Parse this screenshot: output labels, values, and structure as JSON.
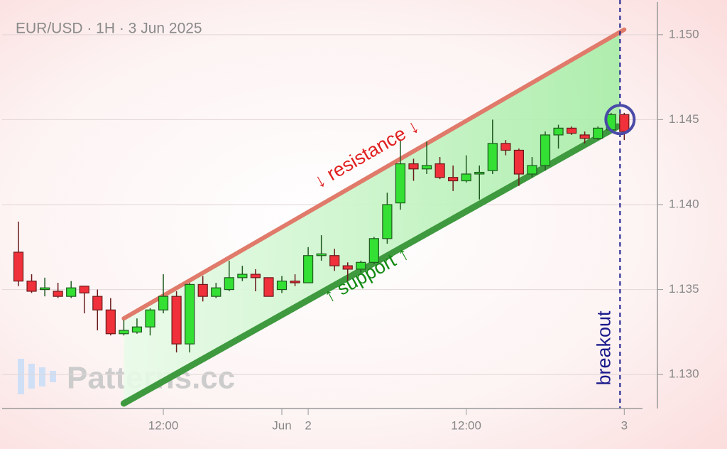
{
  "chart_data": {
    "type": "candlestick",
    "title": "EUR/USD · 1H · 3 Jun 2025",
    "watermark": "Patterns.cc",
    "categories": [
      null,
      null,
      null,
      null,
      null,
      null,
      null,
      null,
      null,
      null,
      null,
      "12:00",
      null,
      null,
      null,
      null,
      null,
      null,
      null,
      null,
      "Jun",
      null,
      "2",
      null,
      null,
      null,
      null,
      null,
      null,
      null,
      null,
      null,
      null,
      null,
      "12:00",
      null,
      null,
      null,
      null,
      null,
      null,
      null,
      null,
      null,
      null,
      null,
      "3"
    ],
    "open": [
      1.1372,
      1.1355,
      1.135,
      1.1349,
      1.1346,
      1.1352,
      1.1346,
      1.1338,
      1.1324,
      1.1325,
      1.1328,
      1.1338,
      1.1346,
      1.1318,
      1.1353,
      1.1346,
      1.135,
      1.1357,
      1.1359,
      1.1357,
      1.135,
      1.1355,
      1.1354,
      1.137,
      1.137,
      1.1364,
      1.1362,
      1.1366,
      1.138,
      1.1401,
      1.1424,
      1.1421,
      1.1424,
      1.1416,
      1.1414,
      1.1418,
      1.142,
      1.1436,
      1.1432,
      1.1418,
      1.1423,
      1.1441,
      1.1445,
      1.1441,
      1.1439,
      1.1444,
      1.1453
    ],
    "high": [
      1.139,
      1.1359,
      1.1357,
      1.1354,
      1.1355,
      1.1352,
      1.135,
      1.1345,
      1.1332,
      1.1333,
      1.1339,
      1.1359,
      1.1349,
      1.1354,
      1.1358,
      1.1354,
      1.1367,
      1.1364,
      1.1362,
      1.1357,
      1.1358,
      1.1359,
      1.1375,
      1.1382,
      1.1374,
      1.1366,
      1.1367,
      1.1381,
      1.1407,
      1.1438,
      1.1427,
      1.1437,
      1.1428,
      1.1423,
      1.1429,
      1.1423,
      1.145,
      1.1438,
      1.1433,
      1.1428,
      1.1443,
      1.1447,
      1.1446,
      1.1443,
      1.1446,
      1.1454,
      1.1454
    ],
    "low": [
      1.1352,
      1.1348,
      1.1346,
      1.1345,
      1.1345,
      1.1336,
      1.1326,
      1.1323,
      1.1323,
      1.1324,
      1.1323,
      1.1336,
      1.1313,
      1.1313,
      1.1343,
      1.1345,
      1.1349,
      1.1355,
      1.1349,
      1.1346,
      1.1348,
      1.1352,
      1.1354,
      1.1367,
      1.1361,
      1.1355,
      1.136,
      1.1365,
      1.1377,
      1.1397,
      1.1414,
      1.1418,
      1.1415,
      1.1408,
      1.1413,
      1.1403,
      1.1418,
      1.1429,
      1.1411,
      1.1416,
      1.142,
      1.1433,
      1.1441,
      1.1436,
      1.1438,
      1.1444,
      1.1438
    ],
    "close": [
      1.1355,
      1.1349,
      1.1351,
      1.1346,
      1.1351,
      1.1348,
      1.1338,
      1.1324,
      1.1326,
      1.1328,
      1.1338,
      1.1346,
      1.1318,
      1.1353,
      1.1346,
      1.1351,
      1.1357,
      1.1359,
      1.1357,
      1.1346,
      1.1355,
      1.1354,
      1.137,
      1.1371,
      1.1364,
      1.1362,
      1.1366,
      1.138,
      1.14,
      1.1424,
      1.1421,
      1.1423,
      1.1416,
      1.1414,
      1.1418,
      1.1419,
      1.1436,
      1.1432,
      1.1418,
      1.1423,
      1.1441,
      1.1445,
      1.1442,
      1.1439,
      1.1445,
      1.1453,
      1.1443
    ],
    "up_color": "#33e033",
    "down_color": "#f0303a",
    "ylim": [
      1.128,
      1.152
    ],
    "yticks": [
      {
        "value": 1.13,
        "label": "1.130"
      },
      {
        "value": 1.135,
        "label": "1.135"
      },
      {
        "value": 1.14,
        "label": "1.140"
      },
      {
        "value": 1.145,
        "label": "1.145"
      },
      {
        "value": 1.15,
        "label": "1.150"
      }
    ],
    "grid": true,
    "trendlines": [
      {
        "label": "↓ resistance ↓",
        "color": "#e07a6a",
        "text_color": "#e02020",
        "x": [
          8,
          46
        ],
        "values": [
          1.1333,
          1.1503
        ]
      },
      {
        "label": "↑ support ↑",
        "color": "#3f9a3f",
        "text_color": "#138a13",
        "x": [
          8,
          45.5
        ],
        "values": [
          1.1283,
          1.1446
        ]
      }
    ],
    "breakout": {
      "label": "breakout",
      "x": 46,
      "color": "#1a1a8c"
    }
  }
}
